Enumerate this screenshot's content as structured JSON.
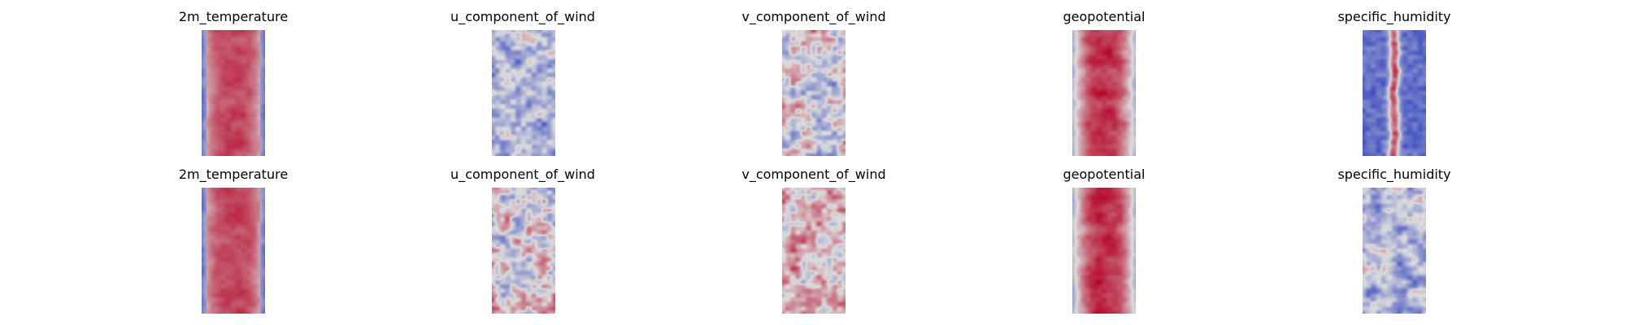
{
  "chart_data": {
    "type": "heatmap",
    "colormap": "coolwarm",
    "colormap_colors": [
      "#3b4cc0",
      "#dddddd",
      "#b40426"
    ],
    "grid": false,
    "axes_visible": false,
    "rows": [
      {
        "panels": [
          {
            "title": "2m_temperature",
            "pattern": "warm_core"
          },
          {
            "title": "u_component_of_wind",
            "pattern": "cool_noisy"
          },
          {
            "title": "v_component_of_wind",
            "pattern": "neutral_noisy"
          },
          {
            "title": "geopotential",
            "pattern": "warm_core_cool_edges"
          },
          {
            "title": "specific_humidity",
            "pattern": "cold_with_hot_stripe"
          }
        ]
      },
      {
        "panels": [
          {
            "title": "2m_temperature",
            "pattern": "warm_core"
          },
          {
            "title": "u_component_of_wind",
            "pattern": "neutral_noisy"
          },
          {
            "title": "v_component_of_wind",
            "pattern": "warm_noisy"
          },
          {
            "title": "geopotential",
            "pattern": "warm_core_cool_edges"
          },
          {
            "title": "specific_humidity",
            "pattern": "cool_noisy"
          }
        ]
      }
    ]
  }
}
